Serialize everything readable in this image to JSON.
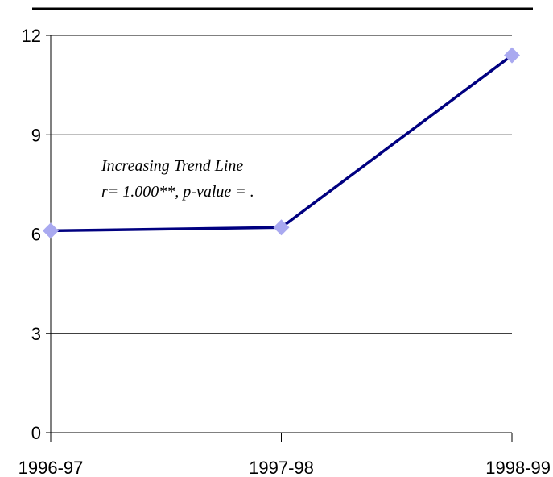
{
  "chart_data": {
    "type": "line",
    "title": "",
    "xlabel": "",
    "ylabel": "",
    "categories": [
      "1996-97",
      "1997-98",
      "1998-99"
    ],
    "series": [
      {
        "values": [
          6.1,
          6.2,
          11.4
        ]
      }
    ],
    "ylim": [
      0,
      12
    ],
    "yticks": [
      "0",
      "3",
      "6",
      "9",
      "12"
    ],
    "grid": true,
    "annotation": {
      "line1": "Increasing Trend Line",
      "line2": "r= 1.000**, p-value = ."
    },
    "colors": {
      "line": "#000080",
      "marker": "#a9a9f0",
      "grid": "#000000",
      "top_rule": "#000000"
    }
  }
}
